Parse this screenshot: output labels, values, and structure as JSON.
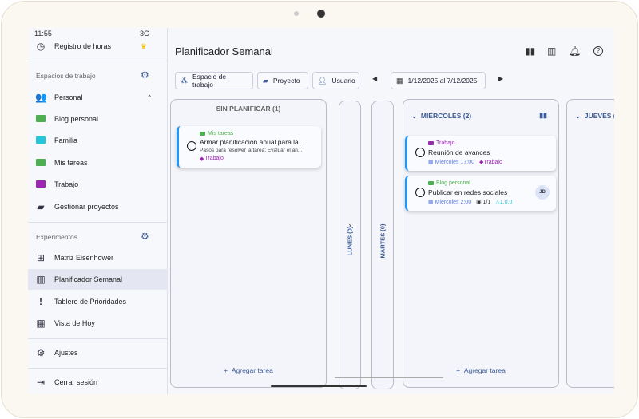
{
  "status": {
    "time": "11:55",
    "network": "3G"
  },
  "sidebar": {
    "time_tracking": "Registro de horas",
    "workspaces_label": "Espacios de trabajo",
    "workspace": "Personal",
    "projects": [
      {
        "label": "Blog personal",
        "color": "#4caf50"
      },
      {
        "label": "Familia",
        "color": "#26c6da"
      },
      {
        "label": "Mis tareas",
        "color": "#4caf50"
      },
      {
        "label": "Trabajo",
        "color": "#9c27b0"
      }
    ],
    "manage_projects": "Gestionar proyectos",
    "experiments_label": "Experimentos",
    "experiments": [
      "Matriz Eisenhower",
      "Planificador Semanal",
      "Tablero de Prioridades",
      "Vista de Hoy"
    ],
    "selected": "Planificador Semanal",
    "settings": "Ajustes",
    "logout": "Cerrar sesión"
  },
  "header": {
    "title": "Planificador Semanal"
  },
  "filters": {
    "workspace": "Espacio de trabajo",
    "project": "Proyecto",
    "user": "Usuario",
    "date_range": "1/12/2025 al 7/12/2025"
  },
  "columns": {
    "unplanned": {
      "title": "SIN PLANIFICAR (1)",
      "add": "Agregar tarea",
      "tasks": [
        {
          "project": "Mis tareas",
          "project_color": "#4caf50",
          "title": "Armar planificación anual para la...",
          "description": "Pasos para resolver la tarea: Evaluar el añ...",
          "tag": "Trabajo"
        }
      ]
    },
    "monday": "LUNES (0)",
    "tuesday": "MARTES (0)",
    "wednesday": {
      "title": "MIÉRCOLES (2)",
      "add": "Agregar tarea",
      "tasks": [
        {
          "project": "Trabajo",
          "project_color": "#9c27b0",
          "title": "Reunión de avances",
          "date": "Miércoles 17:00",
          "tag": "Trabajo"
        },
        {
          "project": "Blog personal",
          "project_color": "#4caf50",
          "title": "Publicar en redes sociales",
          "date": "Miércoles 2:00",
          "subtasks": "1/1",
          "version": "1.0.0",
          "assignee": "JD"
        }
      ]
    },
    "thursday": "JUEVES ("
  },
  "colors": {
    "accent": "#3b5a96",
    "task_border": "#2196f3",
    "tag": "#9c27b0",
    "date": "#5b7be0"
  }
}
